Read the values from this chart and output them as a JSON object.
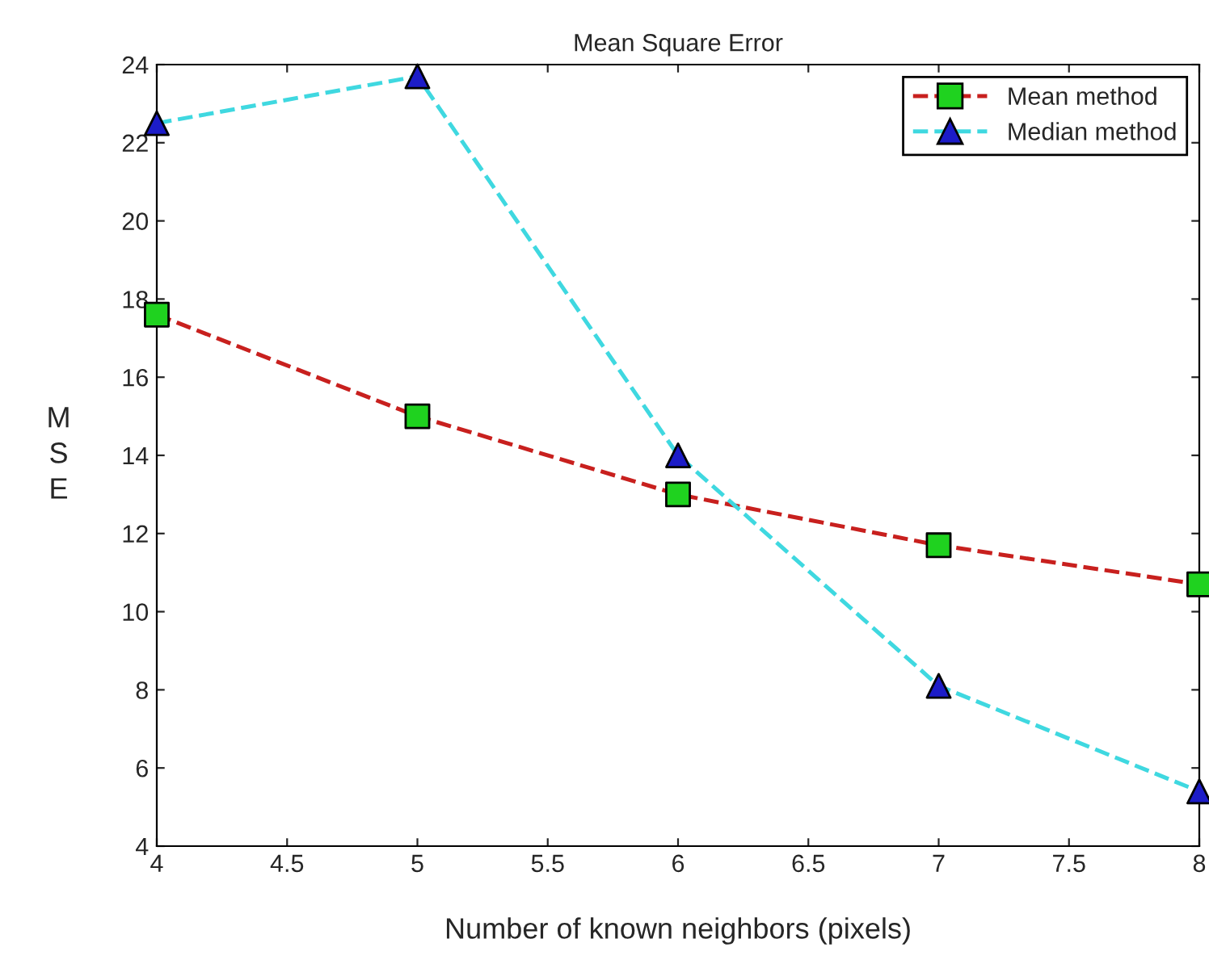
{
  "chart_data": {
    "type": "line",
    "title": "Mean Square Error",
    "xlabel": "Number of known neighbors (pixels)",
    "ylabel": "MSE",
    "x": [
      4,
      5,
      6,
      7,
      8
    ],
    "series": [
      {
        "name": "Mean method",
        "color": "#c8201e",
        "marker": "square",
        "colors": [
          "#1fd21f",
          "#1fd21f",
          "#1fd21f",
          "#1fd21f",
          "#1fd21f"
        ],
        "line_style": "dashed",
        "values": [
          17.6,
          15.0,
          13.0,
          11.7,
          10.7
        ]
      },
      {
        "name": "Median method",
        "color": "#3fd8e0",
        "marker": "triangle",
        "colors": [
          "#1c1cc8",
          "#1c1cc8",
          "#1c1cc8",
          "#1c1cc8",
          "#1c1cc8"
        ],
        "line_style": "dashed",
        "values": [
          22.5,
          23.7,
          14.0,
          8.1,
          5.4
        ]
      }
    ],
    "xlim": [
      4,
      8
    ],
    "xticks": [
      4,
      4.5,
      5,
      5.5,
      6,
      6.5,
      7,
      7.5,
      8
    ],
    "ylim": [
      4,
      24
    ],
    "yticks": [
      4,
      6,
      8,
      10,
      12,
      14,
      16,
      18,
      20,
      22,
      24
    ],
    "grid": false,
    "legend": "top right"
  }
}
